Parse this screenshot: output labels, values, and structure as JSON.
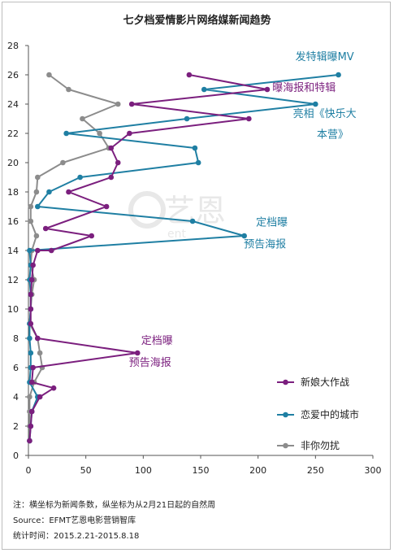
{
  "chart_data": {
    "type": "line",
    "title": "七夕档爱情影片网络媒新闻趋势",
    "xlim": [
      0,
      300
    ],
    "ylim": [
      0,
      28
    ],
    "x_ticks": [
      0,
      50,
      100,
      150,
      200,
      250,
      300
    ],
    "y_ticks": [
      0,
      2,
      4,
      6,
      8,
      10,
      12,
      14,
      16,
      18,
      20,
      22,
      24,
      26,
      28
    ],
    "grid": false,
    "legend_position": "bottom-right",
    "series": [
      {
        "name": "新娘大作战",
        "color": "#7b1f7e",
        "points": [
          [
            1,
            1
          ],
          [
            2,
            2
          ],
          [
            3,
            3
          ],
          [
            10,
            4
          ],
          [
            22,
            4.6
          ],
          [
            3,
            5
          ],
          [
            4,
            6
          ],
          [
            95,
            7
          ],
          [
            8,
            8
          ],
          [
            2,
            9
          ],
          [
            2,
            10
          ],
          [
            2,
            11
          ],
          [
            3,
            12
          ],
          [
            4,
            13
          ],
          [
            8,
            14
          ],
          [
            20,
            14
          ],
          [
            55,
            15
          ],
          [
            15,
            15.5
          ],
          [
            68,
            17
          ],
          [
            35,
            18
          ],
          [
            72,
            19
          ],
          [
            78,
            20
          ],
          [
            72,
            21
          ],
          [
            88,
            22
          ],
          [
            192,
            23
          ],
          [
            90,
            24
          ],
          [
            208,
            25
          ],
          [
            140,
            26
          ]
        ]
      },
      {
        "name": "恋爱中的城市",
        "color": "#1f7fa3",
        "points": [
          [
            1,
            1
          ],
          [
            2,
            2
          ],
          [
            3,
            3
          ],
          [
            8,
            4
          ],
          [
            1,
            5
          ],
          [
            2,
            6
          ],
          [
            2,
            7
          ],
          [
            1,
            8
          ],
          [
            1,
            9
          ],
          [
            2,
            10
          ],
          [
            2,
            11
          ],
          [
            1,
            12
          ],
          [
            2,
            13
          ],
          [
            1,
            14
          ],
          [
            188,
            15
          ],
          [
            143,
            16
          ],
          [
            8,
            17
          ],
          [
            18,
            18
          ],
          [
            45,
            19
          ],
          [
            148,
            20
          ],
          [
            145,
            21
          ],
          [
            33,
            22
          ],
          [
            138,
            23
          ],
          [
            250,
            24
          ],
          [
            153,
            25
          ],
          [
            270,
            26
          ]
        ]
      },
      {
        "name": "非你勿扰",
        "color": "#8c8c8c",
        "points": [
          [
            1,
            1
          ],
          [
            1,
            2
          ],
          [
            1,
            3
          ],
          [
            1,
            4
          ],
          [
            5,
            5
          ],
          [
            12,
            6
          ],
          [
            10,
            7
          ],
          [
            8,
            8
          ],
          [
            1,
            9
          ],
          [
            2,
            10
          ],
          [
            3,
            11
          ],
          [
            5,
            12
          ],
          [
            2,
            13
          ],
          [
            3,
            14
          ],
          [
            7,
            15
          ],
          [
            2,
            16
          ],
          [
            2,
            17
          ],
          [
            7,
            18
          ],
          [
            8,
            19
          ],
          [
            30,
            20
          ],
          [
            70,
            21
          ],
          [
            62,
            22
          ],
          [
            47,
            23
          ],
          [
            78,
            24
          ],
          [
            35,
            25
          ],
          [
            18,
            26
          ]
        ]
      }
    ],
    "annotations": [
      {
        "text": "发特辑曝MV",
        "color": "#1f7fa3",
        "at": [
          258,
          27
        ]
      },
      {
        "text": "曝海报和特辑",
        "color": "#7b1f7e",
        "at": [
          240,
          24.9
        ]
      },
      {
        "text": "亮相《快乐大",
        "color": "#1f7fa3",
        "at": [
          258,
          23.1
        ]
      },
      {
        "text": "本营》",
        "color": "#1f7fa3",
        "at": [
          265,
          21.7
        ]
      },
      {
        "text": "定档曝",
        "color": "#1f7fa3",
        "at": [
          212,
          15.7
        ]
      },
      {
        "text": "预告海报",
        "color": "#1f7fa3",
        "at": [
          206,
          14.2
        ]
      },
      {
        "text": "定档曝",
        "color": "#7b1f7e",
        "at": [
          112,
          7.6
        ]
      },
      {
        "text": "预告海报",
        "color": "#7b1f7e",
        "at": [
          106,
          6.1
        ]
      }
    ]
  },
  "notes": {
    "line1": "注：横坐标为新闻条数，纵坐标为从2月21日起的自然周",
    "line2": "Source：EFMT艺恩电影营销智库",
    "line3": "统计时间：2015.2.21-2015.8.18"
  },
  "watermark": {
    "text": "艺恩",
    "sub": "ent"
  }
}
